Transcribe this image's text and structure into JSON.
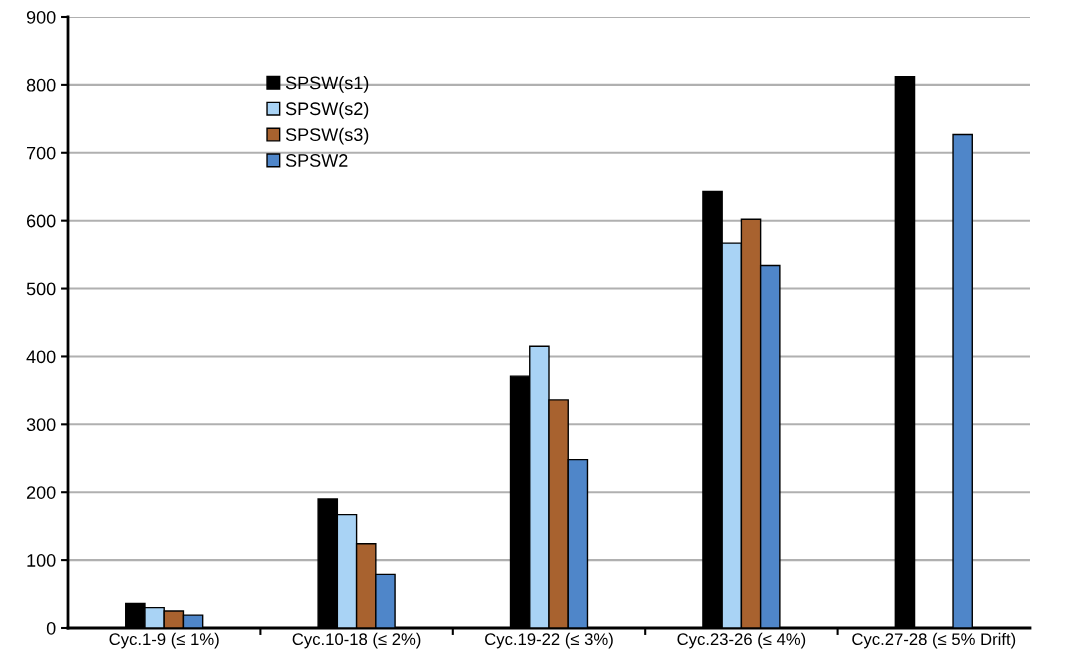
{
  "chart_data": {
    "type": "bar",
    "categories": [
      "Cyc.1-9 (≤ 1%)",
      "Cyc.10-18 (≤ 2%)",
      "Cyc.19-22 (≤ 3%)",
      "Cyc.23-26 (≤ 4%)",
      "Cyc.27-28 (≤ 5% Drift)"
    ],
    "series": [
      {
        "name": "SPSW(s1)",
        "color": "#000000",
        "values": [
          36,
          190,
          371,
          643,
          812
        ]
      },
      {
        "name": "SPSW(s2)",
        "color": "#a9d3f5",
        "values": [
          30,
          167,
          415,
          567,
          null
        ]
      },
      {
        "name": "SPSW(s3)",
        "color": "#a8622f",
        "values": [
          25,
          124,
          336,
          602,
          null
        ]
      },
      {
        "name": "SPSW2",
        "color": "#4f86c9",
        "values": [
          19,
          79,
          248,
          534,
          727
        ]
      }
    ],
    "ylim": [
      0,
      900
    ],
    "yticks": [
      0,
      100,
      200,
      300,
      400,
      500,
      600,
      700,
      800,
      900
    ],
    "grid": "y",
    "legend": "top left"
  }
}
